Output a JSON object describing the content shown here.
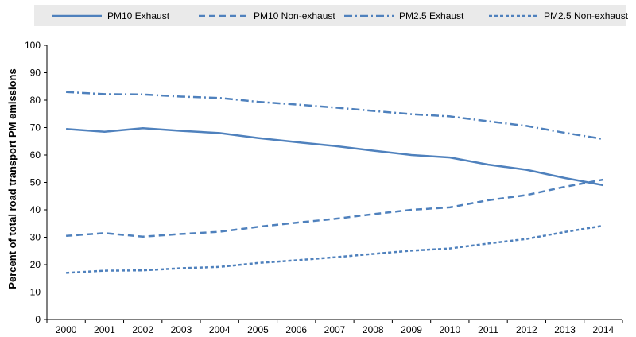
{
  "chart_data": {
    "type": "line",
    "title": "",
    "xlabel": "",
    "ylabel": "Percent of total road transport PM emissions",
    "ylim": [
      0,
      100
    ],
    "yticks": [
      0,
      10,
      20,
      30,
      40,
      50,
      60,
      70,
      80,
      90,
      100
    ],
    "grid": false,
    "legend_position": "top",
    "categories": [
      "2000",
      "2001",
      "2002",
      "2003",
      "2004",
      "2005",
      "2006",
      "2007",
      "2008",
      "2009",
      "2010",
      "2011",
      "2012",
      "2013",
      "2014"
    ],
    "series": [
      {
        "name": "PM10 Exhaust",
        "style": "solid",
        "color": "#4f81bd",
        "values": [
          69.5,
          68.5,
          69.8,
          68.8,
          68.0,
          66.2,
          64.7,
          63.3,
          61.6,
          60.0,
          59.1,
          56.5,
          54.6,
          51.6,
          49.0
        ]
      },
      {
        "name": "PM10 Non-exhaust",
        "style": "dash",
        "color": "#4f81bd",
        "values": [
          30.5,
          31.5,
          30.2,
          31.2,
          32.0,
          33.8,
          35.3,
          36.7,
          38.4,
          40.0,
          40.9,
          43.5,
          45.4,
          48.4,
          51.0
        ]
      },
      {
        "name": "PM2.5 Exhaust",
        "style": "dashdot",
        "color": "#4f81bd",
        "values": [
          83.0,
          82.2,
          82.1,
          81.3,
          80.8,
          79.4,
          78.4,
          77.3,
          76.1,
          74.9,
          74.1,
          72.3,
          70.6,
          68.1,
          65.8
        ]
      },
      {
        "name": "PM2.5 Non-exhaust",
        "style": "shortdash",
        "color": "#4f81bd",
        "values": [
          17.0,
          17.8,
          17.9,
          18.7,
          19.2,
          20.6,
          21.6,
          22.7,
          23.9,
          25.1,
          25.9,
          27.7,
          29.4,
          31.9,
          34.2
        ]
      }
    ]
  }
}
